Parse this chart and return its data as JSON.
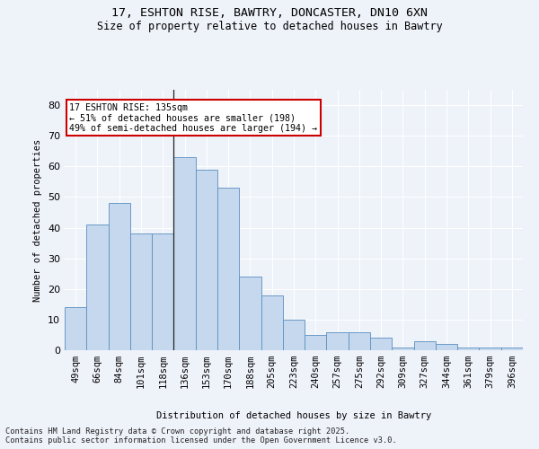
{
  "title1": "17, ESHTON RISE, BAWTRY, DONCASTER, DN10 6XN",
  "title2": "Size of property relative to detached houses in Bawtry",
  "xlabel": "Distribution of detached houses by size in Bawtry",
  "ylabel": "Number of detached properties",
  "categories": [
    "49sqm",
    "66sqm",
    "84sqm",
    "101sqm",
    "118sqm",
    "136sqm",
    "153sqm",
    "170sqm",
    "188sqm",
    "205sqm",
    "223sqm",
    "240sqm",
    "257sqm",
    "275sqm",
    "292sqm",
    "309sqm",
    "327sqm",
    "344sqm",
    "361sqm",
    "379sqm",
    "396sqm"
  ],
  "values": [
    14,
    41,
    48,
    38,
    38,
    63,
    59,
    53,
    24,
    18,
    10,
    5,
    6,
    6,
    4,
    1,
    3,
    2,
    1,
    1,
    1
  ],
  "bar_color": "#c5d8ed",
  "bar_edge_color": "#5a8fc0",
  "highlight_bar_index": 5,
  "highlight_line_color": "#222222",
  "annotation_text": "17 ESHTON RISE: 135sqm\n← 51% of detached houses are smaller (198)\n49% of semi-detached houses are larger (194) →",
  "annotation_box_color": "#ffffff",
  "annotation_box_edge_color": "#cc0000",
  "ylim": [
    0,
    85
  ],
  "yticks": [
    0,
    10,
    20,
    30,
    40,
    50,
    60,
    70,
    80
  ],
  "background_color": "#eef2f9",
  "grid_color": "#ffffff",
  "footnote": "Contains HM Land Registry data © Crown copyright and database right 2025.\nContains public sector information licensed under the Open Government Licence v3.0."
}
